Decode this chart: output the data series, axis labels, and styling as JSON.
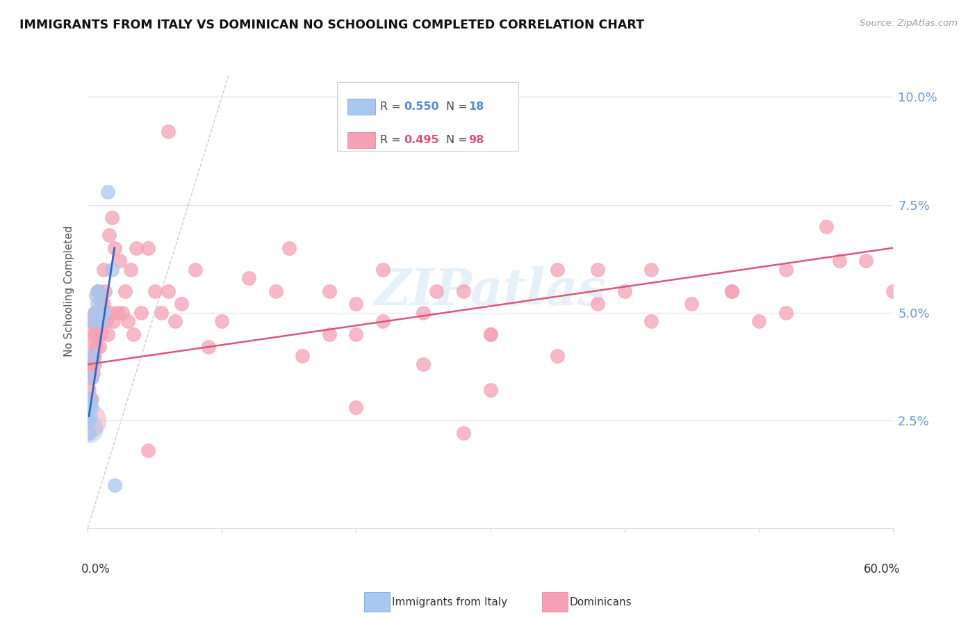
{
  "title": "IMMIGRANTS FROM ITALY VS DOMINICAN NO SCHOOLING COMPLETED CORRELATION CHART",
  "source": "Source: ZipAtlas.com",
  "ylabel": "No Schooling Completed",
  "italy_color": "#a8c8f0",
  "italy_edge_color": "#6699cc",
  "dom_color": "#f5a0b5",
  "dom_edge_color": "#dd7799",
  "italy_trend_color": "#3366bb",
  "dom_trend_color": "#dd5577",
  "ref_line_color": "#bbbbcc",
  "background_color": "#ffffff",
  "grid_color": "#ddddee",
  "watermark_color": "#c8dff0",
  "right_tick_color": "#6699dd",
  "legend_italy_r": "0.550",
  "legend_italy_n": "18",
  "legend_dom_r": "0.495",
  "legend_dom_n": "98",
  "italy_x": [
    0.001,
    0.001,
    0.001,
    0.002,
    0.002,
    0.003,
    0.003,
    0.004,
    0.004,
    0.005,
    0.006,
    0.007,
    0.008,
    0.01,
    0.012,
    0.015,
    0.018,
    0.02
  ],
  "italy_y": [
    0.022,
    0.025,
    0.028,
    0.026,
    0.03,
    0.028,
    0.035,
    0.04,
    0.048,
    0.05,
    0.054,
    0.052,
    0.055,
    0.048,
    0.05,
    0.078,
    0.06,
    0.01
  ],
  "italy_sizes": [
    30,
    30,
    30,
    30,
    30,
    30,
    30,
    30,
    30,
    30,
    30,
    30,
    30,
    30,
    30,
    30,
    30,
    30
  ],
  "dom_x": [
    0.001,
    0.001,
    0.001,
    0.001,
    0.001,
    0.002,
    0.002,
    0.002,
    0.002,
    0.002,
    0.003,
    0.003,
    0.003,
    0.003,
    0.004,
    0.004,
    0.004,
    0.005,
    0.005,
    0.005,
    0.005,
    0.006,
    0.006,
    0.007,
    0.007,
    0.008,
    0.008,
    0.009,
    0.009,
    0.01,
    0.01,
    0.011,
    0.012,
    0.012,
    0.013,
    0.014,
    0.015,
    0.016,
    0.017,
    0.018,
    0.019,
    0.02,
    0.022,
    0.024,
    0.026,
    0.028,
    0.03,
    0.032,
    0.034,
    0.036,
    0.04,
    0.045,
    0.05,
    0.055,
    0.06,
    0.065,
    0.07,
    0.08,
    0.09,
    0.1,
    0.12,
    0.15,
    0.18,
    0.2,
    0.22,
    0.25,
    0.28,
    0.3,
    0.35,
    0.38,
    0.4,
    0.42,
    0.45,
    0.48,
    0.5,
    0.52,
    0.55,
    0.58,
    0.6,
    0.35,
    0.3,
    0.26,
    0.22,
    0.2,
    0.38,
    0.42,
    0.48,
    0.52,
    0.56,
    0.2,
    0.25,
    0.3,
    0.28,
    0.18,
    0.16,
    0.14,
    0.06,
    0.045
  ],
  "dom_y": [
    0.022,
    0.025,
    0.028,
    0.032,
    0.038,
    0.03,
    0.035,
    0.038,
    0.042,
    0.048,
    0.03,
    0.035,
    0.038,
    0.045,
    0.036,
    0.04,
    0.048,
    0.04,
    0.045,
    0.05,
    0.038,
    0.042,
    0.048,
    0.045,
    0.055,
    0.048,
    0.055,
    0.042,
    0.05,
    0.045,
    0.052,
    0.048,
    0.052,
    0.06,
    0.055,
    0.048,
    0.045,
    0.068,
    0.05,
    0.072,
    0.048,
    0.065,
    0.05,
    0.062,
    0.05,
    0.055,
    0.048,
    0.06,
    0.045,
    0.065,
    0.05,
    0.065,
    0.055,
    0.05,
    0.055,
    0.048,
    0.052,
    0.06,
    0.042,
    0.048,
    0.058,
    0.065,
    0.055,
    0.045,
    0.06,
    0.05,
    0.055,
    0.045,
    0.06,
    0.052,
    0.055,
    0.06,
    0.052,
    0.055,
    0.048,
    0.06,
    0.07,
    0.062,
    0.055,
    0.04,
    0.045,
    0.055,
    0.048,
    0.052,
    0.06,
    0.048,
    0.055,
    0.05,
    0.062,
    0.028,
    0.038,
    0.032,
    0.022,
    0.045,
    0.04,
    0.055,
    0.092,
    0.018
  ],
  "dom_sizes": [
    400,
    200,
    200,
    200,
    200,
    200,
    200,
    200,
    200,
    200,
    200,
    200,
    200,
    200,
    200,
    200,
    200,
    200,
    200,
    200,
    200,
    200,
    200,
    200,
    200,
    200,
    200,
    200,
    200,
    200,
    200,
    200,
    200,
    200,
    200,
    200,
    200,
    200,
    200,
    200,
    200,
    200,
    200,
    200,
    200,
    200,
    200,
    200,
    200,
    200,
    200,
    200,
    200,
    200,
    200,
    200,
    200,
    200,
    200,
    200,
    200,
    200,
    200,
    200,
    200,
    200,
    200,
    200,
    200,
    200,
    200,
    200,
    200,
    200,
    200,
    200,
    200,
    200,
    200,
    200,
    200,
    200,
    200,
    200,
    200,
    200,
    200,
    200,
    200,
    200,
    200,
    200,
    200,
    200,
    200,
    200,
    200,
    200
  ],
  "xlim": [
    0.0,
    0.6
  ],
  "ylim": [
    0.0,
    0.11
  ],
  "yticks": [
    0.0,
    0.025,
    0.05,
    0.075,
    0.1
  ],
  "yticklabels_right": [
    "",
    "2.5%",
    "5.0%",
    "7.5%",
    "10.0%"
  ],
  "xtick_labels_bottom": [
    "0.0%",
    "60.0%"
  ],
  "dom_trend_x": [
    0.0,
    0.6
  ],
  "dom_trend_y": [
    0.038,
    0.065
  ],
  "ita_trend_x": [
    0.001,
    0.02
  ],
  "ita_trend_y": [
    0.026,
    0.065
  ],
  "ref_line_x": [
    0.0,
    0.105
  ],
  "ref_line_y": [
    0.0,
    0.105
  ],
  "watermark": "ZIPatlas"
}
